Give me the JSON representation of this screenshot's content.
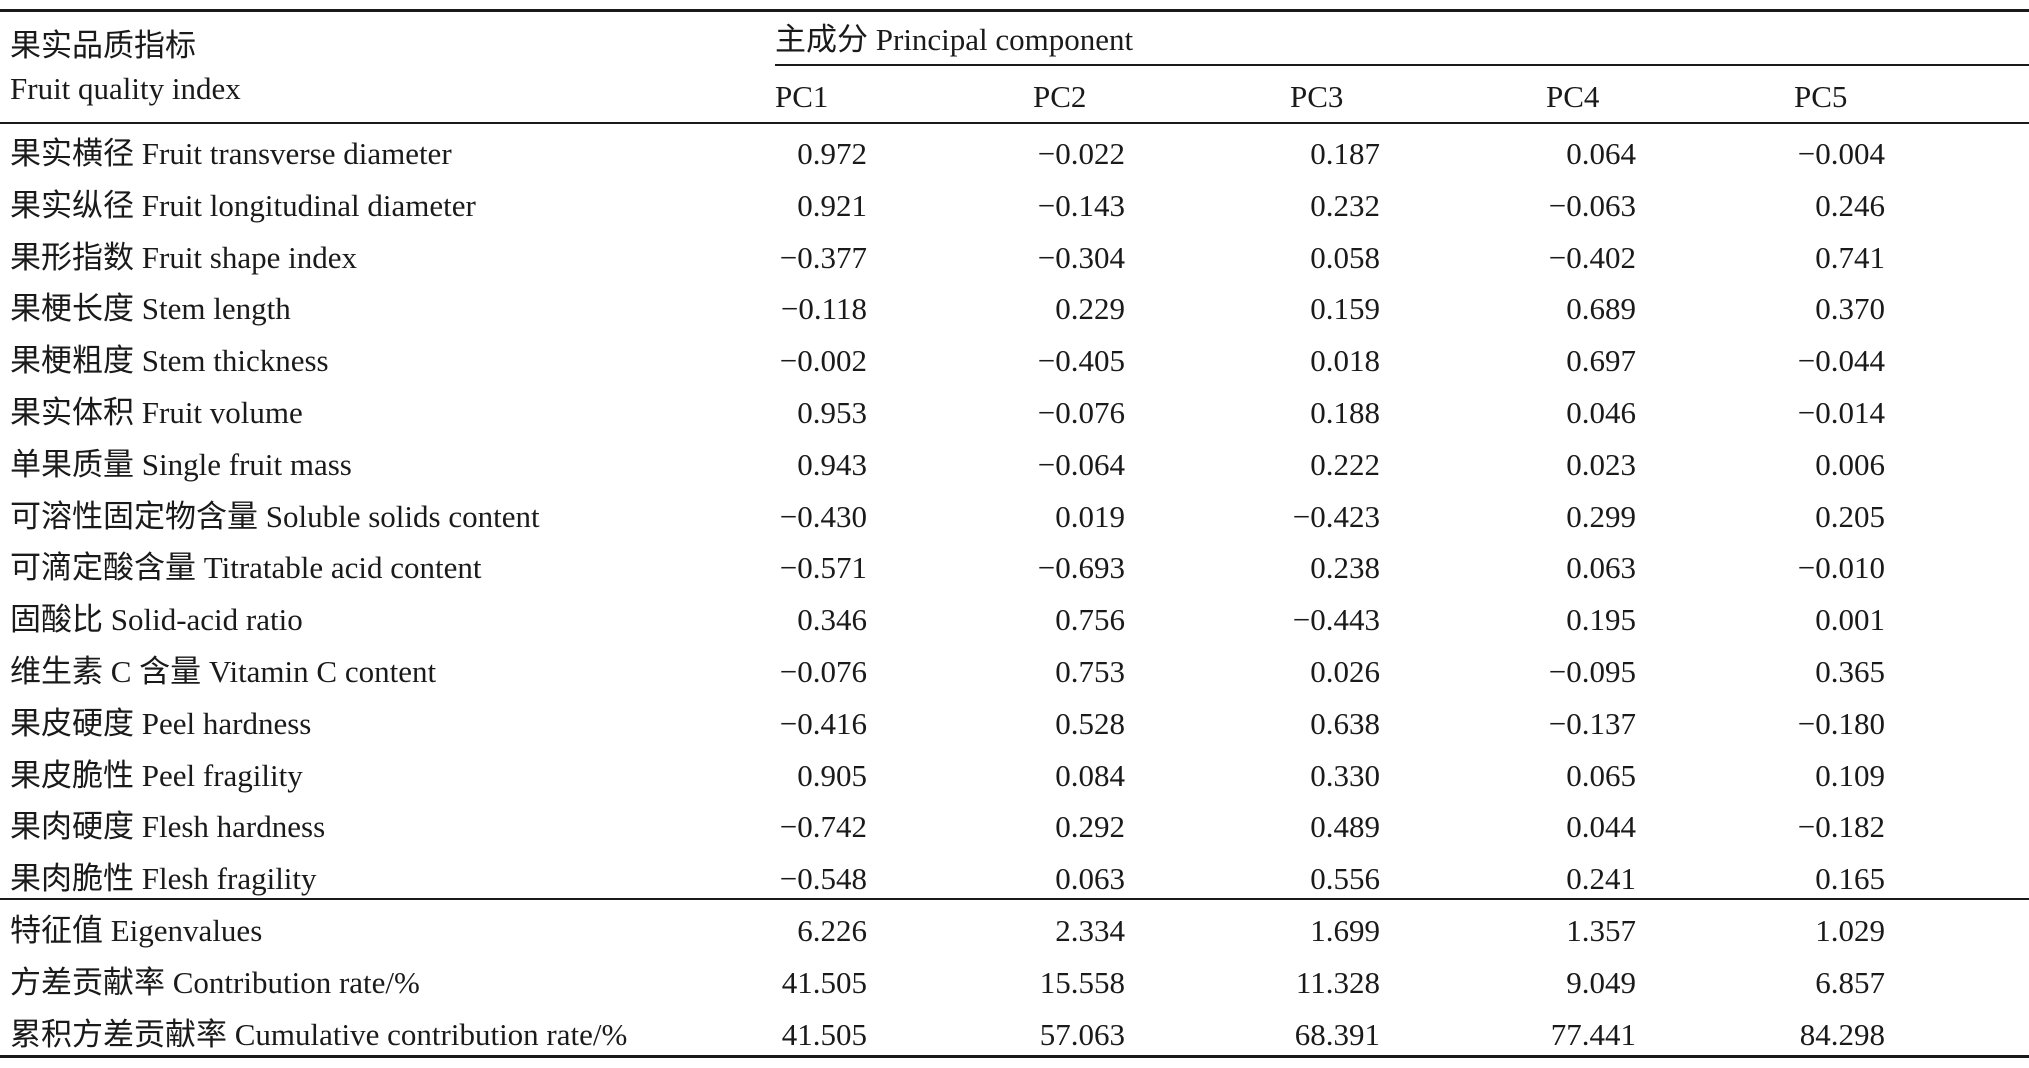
{
  "header": {
    "index_zh": "果实品质指标",
    "index_en": "Fruit quality index",
    "pc_group": "主成分 Principal component",
    "columns": [
      "PC1",
      "PC2",
      "PC3",
      "PC4",
      "PC5"
    ]
  },
  "rows": [
    {
      "label": "果实横径 Fruit transverse diameter",
      "values": [
        "0.972",
        "−0.022",
        "0.187",
        "0.064",
        "−0.004"
      ]
    },
    {
      "label": "果实纵径 Fruit longitudinal diameter",
      "values": [
        "0.921",
        "−0.143",
        "0.232",
        "−0.063",
        "0.246"
      ]
    },
    {
      "label": "果形指数 Fruit shape index",
      "values": [
        "−0.377",
        "−0.304",
        "0.058",
        "−0.402",
        "0.741"
      ]
    },
    {
      "label": "果梗长度 Stem length",
      "values": [
        "−0.118",
        "0.229",
        "0.159",
        "0.689",
        "0.370"
      ]
    },
    {
      "label": "果梗粗度 Stem thickness",
      "values": [
        "−0.002",
        "−0.405",
        "0.018",
        "0.697",
        "−0.044"
      ]
    },
    {
      "label": "果实体积 Fruit volume",
      "values": [
        "0.953",
        "−0.076",
        "0.188",
        "0.046",
        "−0.014"
      ]
    },
    {
      "label": "单果质量 Single fruit mass",
      "values": [
        "0.943",
        "−0.064",
        "0.222",
        "0.023",
        "0.006"
      ]
    },
    {
      "label": "可溶性固定物含量 Soluble solids content",
      "values": [
        "−0.430",
        "0.019",
        "−0.423",
        "0.299",
        "0.205"
      ]
    },
    {
      "label": "可滴定酸含量 Titratable acid content",
      "values": [
        "−0.571",
        "−0.693",
        "0.238",
        "0.063",
        "−0.010"
      ]
    },
    {
      "label": "固酸比 Solid-acid ratio",
      "values": [
        "0.346",
        "0.756",
        "−0.443",
        "0.195",
        "0.001"
      ]
    },
    {
      "label": "维生素 C 含量 Vitamin C content",
      "values": [
        "−0.076",
        "0.753",
        "0.026",
        "−0.095",
        "0.365"
      ]
    },
    {
      "label": "果皮硬度 Peel hardness",
      "values": [
        "−0.416",
        "0.528",
        "0.638",
        "−0.137",
        "−0.180"
      ]
    },
    {
      "label": "果皮脆性 Peel fragility",
      "values": [
        "0.905",
        "0.084",
        "0.330",
        "0.065",
        "0.109"
      ]
    },
    {
      "label": "果肉硬度 Flesh hardness",
      "values": [
        "−0.742",
        "0.292",
        "0.489",
        "0.044",
        "−0.182"
      ]
    },
    {
      "label": "果肉脆性 Flesh fragility",
      "values": [
        "−0.548",
        "0.063",
        "0.556",
        "0.241",
        "0.165"
      ]
    }
  ],
  "summary": [
    {
      "label": "特征值 Eigenvalues",
      "values": [
        "6.226",
        "2.334",
        "1.699",
        "1.357",
        "1.029"
      ]
    },
    {
      "label": "方差贡献率 Contribution rate/%",
      "values": [
        "41.505",
        "15.558",
        "11.328",
        "9.049",
        "6.857"
      ]
    },
    {
      "label": "累积方差贡献率 Cumulative contribution rate/%",
      "values": [
        "41.505",
        "57.063",
        "68.391",
        "77.441",
        "84.298"
      ]
    }
  ]
}
